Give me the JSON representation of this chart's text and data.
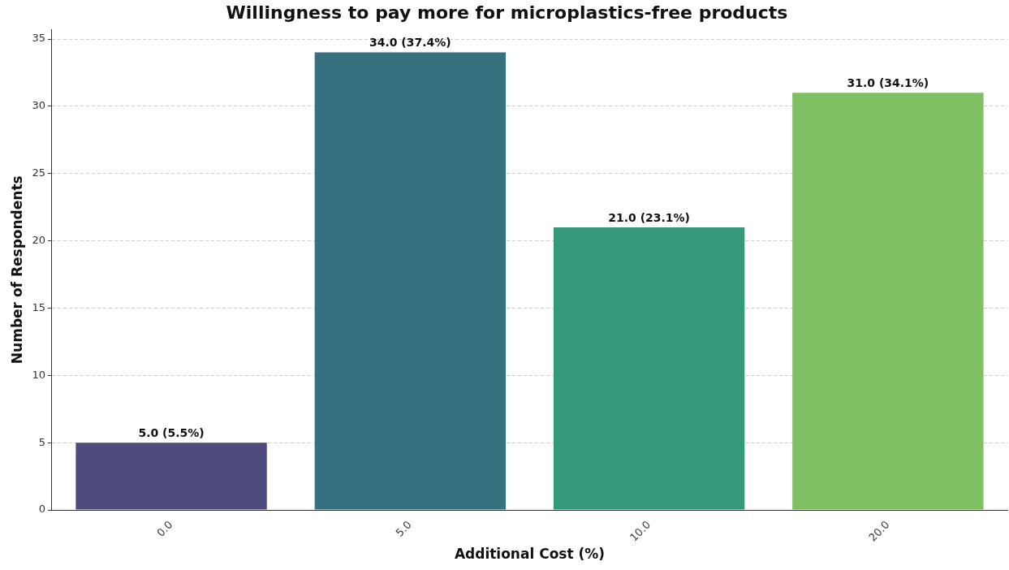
{
  "chart_data": {
    "type": "bar",
    "title": "Willingness to pay more for microplastics-free products",
    "xlabel": "Additional Cost (%)",
    "ylabel": "Number of Respondents",
    "categories": [
      "0.0",
      "5.0",
      "10.0",
      "20.0"
    ],
    "values": [
      5,
      34,
      21,
      31
    ],
    "colors": [
      "#4e4c7d",
      "#367180",
      "#35977b",
      "#7fc062"
    ],
    "value_labels": [
      "5.0 (5.5%)",
      "34.0 (37.4%)",
      "21.0 (23.1%)",
      "31.0 (34.1%)"
    ],
    "ylim": [
      0,
      35.7
    ],
    "yticks": [
      0,
      5,
      10,
      15,
      20,
      25,
      30,
      35
    ],
    "grid": "y",
    "legend": false
  }
}
